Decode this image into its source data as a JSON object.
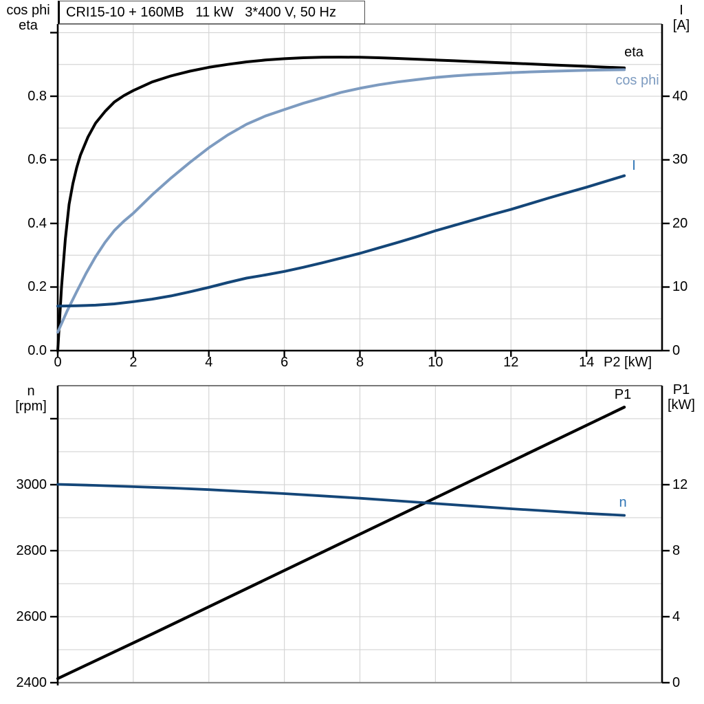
{
  "colors": {
    "black": "#000000",
    "cos_phi_blue": "#7d9bc0",
    "dark_blue": "#144678",
    "label_blue": "#2e74b5",
    "grid": "#d6d6d6"
  },
  "chart_data": [
    {
      "type": "line",
      "title": "CRI15-10 + 160MB   11 kW   3*400 V, 50 Hz",
      "x_axis": {
        "label": "P2 [kW]",
        "min": 0,
        "max": 16,
        "tick_values": [
          0,
          2,
          4,
          6,
          8,
          10,
          12,
          14
        ],
        "tick_labels": [
          "0",
          "2",
          "4",
          "6",
          "8",
          "10",
          "12",
          "14"
        ],
        "grid_values": [
          2,
          4,
          6,
          8,
          10,
          12,
          14
        ]
      },
      "y_left": {
        "label_lines": [
          "cos phi",
          "eta"
        ],
        "min": 0,
        "max": 1.027,
        "tick_values": [
          0,
          0.2,
          0.4,
          0.6,
          0.8,
          1.0
        ],
        "tick_labels": [
          "0.0",
          "0.2",
          "0.4",
          "0.6",
          "0.8",
          ""
        ],
        "grid_values": [
          0.1,
          0.2,
          0.3,
          0.4,
          0.5,
          0.6,
          0.7,
          0.8,
          0.9,
          1.0
        ]
      },
      "y_right": {
        "label_lines": [
          "I",
          "[A]"
        ],
        "min": 0,
        "max": 51.35,
        "tick_values": [
          0,
          10,
          20,
          30,
          40
        ],
        "tick_labels": [
          "0",
          "10",
          "20",
          "30",
          "40"
        ]
      },
      "series": [
        {
          "name": "eta-curve",
          "label": "eta",
          "axis": "left",
          "color": "#000000",
          "width": 4,
          "points": [
            [
              0,
              0
            ],
            [
              0.1,
              0.2
            ],
            [
              0.2,
              0.35
            ],
            [
              0.3,
              0.46
            ],
            [
              0.4,
              0.525
            ],
            [
              0.5,
              0.575
            ],
            [
              0.6,
              0.615
            ],
            [
              0.8,
              0.672
            ],
            [
              1,
              0.715
            ],
            [
              1.25,
              0.752
            ],
            [
              1.5,
              0.782
            ],
            [
              1.75,
              0.802
            ],
            [
              2,
              0.818
            ],
            [
              2.5,
              0.845
            ],
            [
              3,
              0.864
            ],
            [
              3.5,
              0.879
            ],
            [
              4,
              0.891
            ],
            [
              4.5,
              0.9
            ],
            [
              5,
              0.908
            ],
            [
              5.5,
              0.914
            ],
            [
              6,
              0.918
            ],
            [
              6.5,
              0.921
            ],
            [
              7,
              0.9225
            ],
            [
              7.5,
              0.923
            ],
            [
              8,
              0.9225
            ],
            [
              8.5,
              0.921
            ],
            [
              9,
              0.919
            ],
            [
              9.5,
              0.9165
            ],
            [
              10,
              0.914
            ],
            [
              10.5,
              0.9115
            ],
            [
              11,
              0.909
            ],
            [
              11.5,
              0.9065
            ],
            [
              12,
              0.904
            ],
            [
              12.5,
              0.9015
            ],
            [
              13,
              0.899
            ],
            [
              13.5,
              0.8965
            ],
            [
              14,
              0.894
            ],
            [
              14.5,
              0.8915
            ],
            [
              15,
              0.889
            ]
          ]
        },
        {
          "name": "cos-phi-curve",
          "label": "cos phi",
          "axis": "left",
          "color": "#7d9bc0",
          "width": 4,
          "points": [
            [
              0,
              0.058
            ],
            [
              0.25,
              0.125
            ],
            [
              0.5,
              0.185
            ],
            [
              0.75,
              0.243
            ],
            [
              1,
              0.295
            ],
            [
              1.25,
              0.34
            ],
            [
              1.5,
              0.378
            ],
            [
              1.75,
              0.407
            ],
            [
              2,
              0.432
            ],
            [
              2.5,
              0.49
            ],
            [
              3,
              0.543
            ],
            [
              3.5,
              0.592
            ],
            [
              4,
              0.638
            ],
            [
              4.5,
              0.678
            ],
            [
              5,
              0.712
            ],
            [
              5.5,
              0.738
            ],
            [
              6,
              0.758
            ],
            [
              6.5,
              0.778
            ],
            [
              7,
              0.795
            ],
            [
              7.5,
              0.812
            ],
            [
              8,
              0.825
            ],
            [
              8.5,
              0.836
            ],
            [
              9,
              0.845
            ],
            [
              9.5,
              0.852
            ],
            [
              10,
              0.859
            ],
            [
              10.5,
              0.864
            ],
            [
              11,
              0.868
            ],
            [
              11.5,
              0.871
            ],
            [
              12,
              0.874
            ],
            [
              12.5,
              0.8765
            ],
            [
              13,
              0.8785
            ],
            [
              13.5,
              0.88
            ],
            [
              14,
              0.8815
            ],
            [
              14.5,
              0.8825
            ],
            [
              15,
              0.8835
            ]
          ]
        },
        {
          "name": "current-curve",
          "label": "I",
          "axis": "right",
          "color": "#144678",
          "width": 4,
          "points": [
            [
              0,
              7.0
            ],
            [
              0.5,
              7.05
            ],
            [
              1,
              7.15
            ],
            [
              1.5,
              7.35
            ],
            [
              2,
              7.7
            ],
            [
              2.5,
              8.1
            ],
            [
              3,
              8.6
            ],
            [
              3.5,
              9.25
            ],
            [
              4,
              9.95
            ],
            [
              4.5,
              10.7
            ],
            [
              5,
              11.4
            ],
            [
              5.5,
              11.9
            ],
            [
              6,
              12.45
            ],
            [
              6.5,
              13.1
            ],
            [
              7,
              13.8
            ],
            [
              7.5,
              14.55
            ],
            [
              8,
              15.3
            ],
            [
              8.5,
              16.15
            ],
            [
              9,
              17.0
            ],
            [
              9.5,
              17.9
            ],
            [
              10,
              18.85
            ],
            [
              10.5,
              19.7
            ],
            [
              11,
              20.55
            ],
            [
              11.5,
              21.4
            ],
            [
              12,
              22.2
            ],
            [
              12.5,
              23.1
            ],
            [
              13,
              24.0
            ],
            [
              13.5,
              24.85
            ],
            [
              14,
              25.7
            ],
            [
              14.5,
              26.6
            ],
            [
              15,
              27.5
            ]
          ]
        }
      ]
    },
    {
      "type": "line",
      "x_axis": {
        "label": "",
        "min": 0,
        "max": 16,
        "tick_values": [],
        "tick_labels": [],
        "grid_values": [
          2,
          4,
          6,
          8,
          10,
          12,
          14
        ]
      },
      "y_left": {
        "label_lines": [
          "n",
          "[rpm]"
        ],
        "min": 2400,
        "max": 3300,
        "tick_values": [
          2400,
          2600,
          2800,
          3000,
          3200
        ],
        "tick_labels": [
          "2400",
          "2600",
          "2800",
          "3000",
          ""
        ],
        "grid_values": [
          2500,
          2600,
          2700,
          2800,
          2900,
          3000,
          3100,
          3200
        ]
      },
      "y_right": {
        "label_lines": [
          "P1",
          "[kW]"
        ],
        "min": 0,
        "max": 18,
        "tick_values": [
          0,
          4,
          8,
          12
        ],
        "tick_labels": [
          "0",
          "4",
          "8",
          "12"
        ]
      },
      "series": [
        {
          "name": "p1-curve",
          "label": "P1",
          "axis": "right",
          "color": "#000000",
          "width": 4.2,
          "points": [
            [
              0,
              0.25
            ],
            [
              2.5,
              2.95
            ],
            [
              5,
              5.7
            ],
            [
              7.5,
              8.45
            ],
            [
              10,
              11.2
            ],
            [
              12.5,
              13.95
            ],
            [
              15,
              16.7
            ]
          ]
        },
        {
          "name": "speed-curve",
          "label": "n",
          "axis": "left",
          "color": "#144678",
          "width": 3.8,
          "points": [
            [
              0,
              3001
            ],
            [
              1,
              2998
            ],
            [
              2,
              2994
            ],
            [
              3,
              2990
            ],
            [
              4,
              2985
            ],
            [
              5,
              2979
            ],
            [
              6,
              2973
            ],
            [
              7,
              2966
            ],
            [
              8,
              2959
            ],
            [
              9,
              2951
            ],
            [
              10,
              2943
            ],
            [
              11,
              2935
            ],
            [
              12,
              2927
            ],
            [
              13,
              2920
            ],
            [
              14,
              2913
            ],
            [
              15,
              2907
            ]
          ]
        }
      ]
    }
  ]
}
